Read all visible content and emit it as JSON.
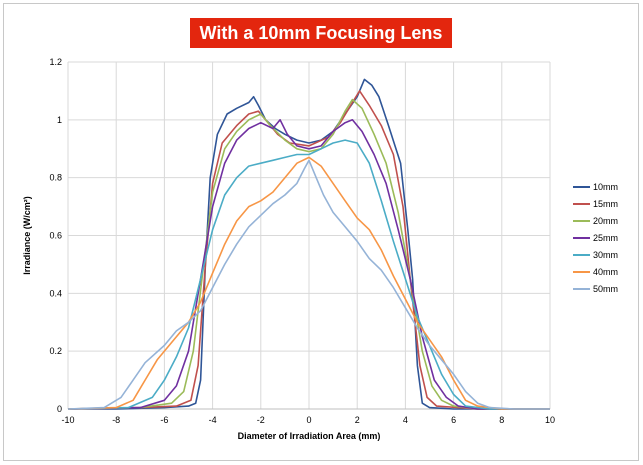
{
  "chart_data": {
    "type": "line",
    "title": "With a 10mm Focusing Lens",
    "xlabel": "Diameter of Irradiation Area (mm)",
    "ylabel": "Irradiance (W/cm²)",
    "xlim": [
      -10,
      10
    ],
    "ylim": [
      0,
      1.2
    ],
    "xticks": [
      "-10",
      "-8",
      "-6",
      "-4",
      "-2",
      "0",
      "2",
      "4",
      "6",
      "8",
      "10"
    ],
    "yticks": [
      "0",
      "0.2",
      "0.4",
      "0.6",
      "0.8",
      "1",
      "1.2"
    ],
    "grid": true,
    "legend_position": "right",
    "series": [
      {
        "name": "10mm",
        "color": "#2f5597",
        "points": [
          [
            -10,
            0
          ],
          [
            -8,
            0
          ],
          [
            -6,
            0.005
          ],
          [
            -5,
            0.01
          ],
          [
            -4.7,
            0.02
          ],
          [
            -4.5,
            0.1
          ],
          [
            -4.3,
            0.5
          ],
          [
            -4.1,
            0.8
          ],
          [
            -3.8,
            0.95
          ],
          [
            -3.4,
            1.02
          ],
          [
            -3.0,
            1.04
          ],
          [
            -2.5,
            1.06
          ],
          [
            -2.3,
            1.08
          ],
          [
            -2.1,
            1.05
          ],
          [
            -1.8,
            1.0
          ],
          [
            -1.4,
            0.97
          ],
          [
            -1.0,
            0.95
          ],
          [
            -0.5,
            0.93
          ],
          [
            0,
            0.92
          ],
          [
            0.5,
            0.93
          ],
          [
            1.0,
            0.96
          ],
          [
            1.5,
            1.02
          ],
          [
            2.0,
            1.08
          ],
          [
            2.3,
            1.14
          ],
          [
            2.6,
            1.12
          ],
          [
            2.9,
            1.08
          ],
          [
            3.3,
            0.98
          ],
          [
            3.8,
            0.85
          ],
          [
            4.1,
            0.62
          ],
          [
            4.3,
            0.45
          ],
          [
            4.5,
            0.15
          ],
          [
            4.7,
            0.02
          ],
          [
            5,
            0.005
          ],
          [
            6,
            0
          ],
          [
            8,
            0
          ],
          [
            10,
            0
          ]
        ]
      },
      {
        "name": "15mm",
        "color": "#c0504d",
        "points": [
          [
            -10,
            0
          ],
          [
            -7,
            0.005
          ],
          [
            -5.5,
            0.01
          ],
          [
            -4.9,
            0.03
          ],
          [
            -4.6,
            0.15
          ],
          [
            -4.3,
            0.5
          ],
          [
            -4.0,
            0.78
          ],
          [
            -3.6,
            0.92
          ],
          [
            -3.0,
            0.98
          ],
          [
            -2.5,
            1.02
          ],
          [
            -2.1,
            1.03
          ],
          [
            -1.8,
            1.0
          ],
          [
            -1.3,
            0.95
          ],
          [
            -0.8,
            0.92
          ],
          [
            0,
            0.91
          ],
          [
            0.8,
            0.94
          ],
          [
            1.3,
            0.99
          ],
          [
            1.8,
            1.06
          ],
          [
            2.1,
            1.1
          ],
          [
            2.5,
            1.05
          ],
          [
            3.0,
            0.98
          ],
          [
            3.5,
            0.88
          ],
          [
            3.9,
            0.7
          ],
          [
            4.2,
            0.45
          ],
          [
            4.6,
            0.15
          ],
          [
            4.9,
            0.04
          ],
          [
            5.3,
            0.01
          ],
          [
            7,
            0
          ],
          [
            10,
            0
          ]
        ]
      },
      {
        "name": "20mm",
        "color": "#9bbb59",
        "points": [
          [
            -10,
            0
          ],
          [
            -7,
            0.005
          ],
          [
            -5.7,
            0.02
          ],
          [
            -5.2,
            0.06
          ],
          [
            -4.8,
            0.2
          ],
          [
            -4.4,
            0.48
          ],
          [
            -4.0,
            0.75
          ],
          [
            -3.5,
            0.9
          ],
          [
            -3.0,
            0.96
          ],
          [
            -2.5,
            1.0
          ],
          [
            -2.0,
            1.02
          ],
          [
            -1.6,
            0.98
          ],
          [
            -1.0,
            0.93
          ],
          [
            -0.5,
            0.9
          ],
          [
            0,
            0.89
          ],
          [
            0.5,
            0.9
          ],
          [
            1.0,
            0.95
          ],
          [
            1.5,
            1.03
          ],
          [
            1.8,
            1.07
          ],
          [
            2.2,
            1.04
          ],
          [
            2.7,
            0.95
          ],
          [
            3.2,
            0.85
          ],
          [
            3.7,
            0.68
          ],
          [
            4.2,
            0.45
          ],
          [
            4.7,
            0.2
          ],
          [
            5.1,
            0.08
          ],
          [
            5.5,
            0.03
          ],
          [
            6,
            0.01
          ],
          [
            7,
            0
          ],
          [
            10,
            0
          ]
        ]
      },
      {
        "name": "25mm",
        "color": "#7030a0",
        "points": [
          [
            -10,
            0
          ],
          [
            -7,
            0.005
          ],
          [
            -6.0,
            0.03
          ],
          [
            -5.5,
            0.08
          ],
          [
            -5.0,
            0.2
          ],
          [
            -4.5,
            0.45
          ],
          [
            -4.0,
            0.7
          ],
          [
            -3.5,
            0.85
          ],
          [
            -3.0,
            0.93
          ],
          [
            -2.5,
            0.97
          ],
          [
            -2.0,
            0.99
          ],
          [
            -1.5,
            0.97
          ],
          [
            -1.2,
            1.0
          ],
          [
            -0.9,
            0.95
          ],
          [
            -0.5,
            0.91
          ],
          [
            0,
            0.9
          ],
          [
            0.5,
            0.91
          ],
          [
            1.0,
            0.96
          ],
          [
            1.5,
            0.99
          ],
          [
            1.8,
            1.0
          ],
          [
            2.2,
            0.96
          ],
          [
            2.7,
            0.88
          ],
          [
            3.2,
            0.78
          ],
          [
            3.7,
            0.62
          ],
          [
            4.2,
            0.45
          ],
          [
            4.7,
            0.25
          ],
          [
            5.2,
            0.1
          ],
          [
            5.7,
            0.04
          ],
          [
            6.2,
            0.01
          ],
          [
            7,
            0
          ],
          [
            10,
            0
          ]
        ]
      },
      {
        "name": "30mm",
        "color": "#4bacc6",
        "points": [
          [
            -10,
            0
          ],
          [
            -7.5,
            0.005
          ],
          [
            -6.5,
            0.04
          ],
          [
            -6.0,
            0.1
          ],
          [
            -5.5,
            0.18
          ],
          [
            -5.0,
            0.28
          ],
          [
            -4.5,
            0.45
          ],
          [
            -4.0,
            0.62
          ],
          [
            -3.5,
            0.74
          ],
          [
            -3.0,
            0.8
          ],
          [
            -2.5,
            0.84
          ],
          [
            -2.0,
            0.85
          ],
          [
            -1.5,
            0.86
          ],
          [
            -1.0,
            0.87
          ],
          [
            -0.5,
            0.88
          ],
          [
            0,
            0.88
          ],
          [
            0.5,
            0.9
          ],
          [
            1.0,
            0.92
          ],
          [
            1.5,
            0.93
          ],
          [
            2.0,
            0.92
          ],
          [
            2.5,
            0.85
          ],
          [
            3.0,
            0.72
          ],
          [
            3.5,
            0.58
          ],
          [
            4.0,
            0.45
          ],
          [
            4.5,
            0.32
          ],
          [
            5.0,
            0.22
          ],
          [
            5.5,
            0.12
          ],
          [
            6.0,
            0.05
          ],
          [
            6.5,
            0.01
          ],
          [
            7.5,
            0
          ],
          [
            10,
            0
          ]
        ]
      },
      {
        "name": "40mm",
        "color": "#f79646",
        "points": [
          [
            -10,
            0
          ],
          [
            -8,
            0.005
          ],
          [
            -7.3,
            0.03
          ],
          [
            -6.8,
            0.1
          ],
          [
            -6.3,
            0.17
          ],
          [
            -5.5,
            0.25
          ],
          [
            -5.0,
            0.3
          ],
          [
            -4.5,
            0.37
          ],
          [
            -4.0,
            0.47
          ],
          [
            -3.5,
            0.57
          ],
          [
            -3.0,
            0.65
          ],
          [
            -2.5,
            0.7
          ],
          [
            -2.0,
            0.72
          ],
          [
            -1.5,
            0.75
          ],
          [
            -1.0,
            0.8
          ],
          [
            -0.5,
            0.85
          ],
          [
            0,
            0.87
          ],
          [
            0.5,
            0.84
          ],
          [
            1.0,
            0.78
          ],
          [
            1.5,
            0.72
          ],
          [
            2.0,
            0.66
          ],
          [
            2.5,
            0.62
          ],
          [
            3.0,
            0.55
          ],
          [
            3.5,
            0.46
          ],
          [
            4.0,
            0.38
          ],
          [
            4.5,
            0.3
          ],
          [
            5.0,
            0.24
          ],
          [
            5.5,
            0.18
          ],
          [
            6.0,
            0.1
          ],
          [
            6.5,
            0.03
          ],
          [
            7.0,
            0.01
          ],
          [
            8,
            0
          ],
          [
            10,
            0
          ]
        ]
      },
      {
        "name": "50mm",
        "color": "#95b3d7",
        "points": [
          [
            -10,
            0
          ],
          [
            -8.5,
            0.005
          ],
          [
            -7.8,
            0.04
          ],
          [
            -7.3,
            0.1
          ],
          [
            -6.8,
            0.16
          ],
          [
            -6.0,
            0.22
          ],
          [
            -5.5,
            0.27
          ],
          [
            -5.0,
            0.3
          ],
          [
            -4.5,
            0.34
          ],
          [
            -4.0,
            0.42
          ],
          [
            -3.5,
            0.5
          ],
          [
            -3.0,
            0.57
          ],
          [
            -2.5,
            0.63
          ],
          [
            -2.0,
            0.67
          ],
          [
            -1.5,
            0.71
          ],
          [
            -1.0,
            0.74
          ],
          [
            -0.5,
            0.78
          ],
          [
            -0.2,
            0.83
          ],
          [
            0,
            0.86
          ],
          [
            0.3,
            0.8
          ],
          [
            0.6,
            0.74
          ],
          [
            1.0,
            0.68
          ],
          [
            1.5,
            0.63
          ],
          [
            2.0,
            0.58
          ],
          [
            2.5,
            0.52
          ],
          [
            3.0,
            0.48
          ],
          [
            3.5,
            0.42
          ],
          [
            4.0,
            0.35
          ],
          [
            4.5,
            0.28
          ],
          [
            5.0,
            0.22
          ],
          [
            5.5,
            0.17
          ],
          [
            6.0,
            0.12
          ],
          [
            6.5,
            0.06
          ],
          [
            7.0,
            0.02
          ],
          [
            7.5,
            0.005
          ],
          [
            8.5,
            0
          ],
          [
            10,
            0
          ]
        ]
      }
    ]
  }
}
